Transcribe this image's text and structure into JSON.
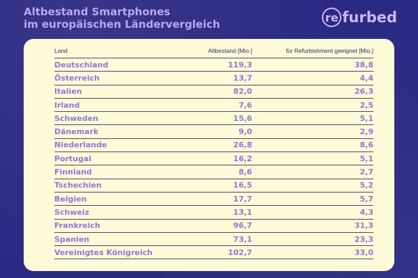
{
  "header": {
    "title_line1": "Altbestand Smartphones",
    "title_line2": "im europäischen Ländervergleich"
  },
  "logo": {
    "ring_text": "re",
    "text": "furbed"
  },
  "colors": {
    "background": "#2b2a82",
    "card": "#fefbd8",
    "accent": "#8f77d8"
  },
  "chart_data": {
    "type": "table",
    "columns": [
      "Land",
      "Altbestand [Mio.]",
      "für Refurbishment geeignet [Mio.]"
    ],
    "rows": [
      [
        "Deutschland",
        "119,3",
        "38,8"
      ],
      [
        "Österreich",
        "13,7",
        "4,4"
      ],
      [
        "Italien",
        "82,0",
        "26,3"
      ],
      [
        "Irland",
        "7,6",
        "2,5"
      ],
      [
        "Schweden",
        "15,6",
        "5,1"
      ],
      [
        "Dänemark",
        "9,0",
        "2,9"
      ],
      [
        "Niederlande",
        "26,8",
        "8,6"
      ],
      [
        "Portugal",
        "16,2",
        "5,1"
      ],
      [
        "Finnland",
        "8,6",
        "2,7"
      ],
      [
        "Tschechien",
        "16,5",
        "5,2"
      ],
      [
        "Belgien",
        "17,7",
        "5,7"
      ],
      [
        "Schweiz",
        "13,1",
        "4,3"
      ],
      [
        "Frankreich",
        "96,7",
        "31,3"
      ],
      [
        "Spanien",
        "73,1",
        "23,3"
      ],
      [
        "Vereinigtes Königreich",
        "102,7",
        "33,0"
      ]
    ]
  }
}
